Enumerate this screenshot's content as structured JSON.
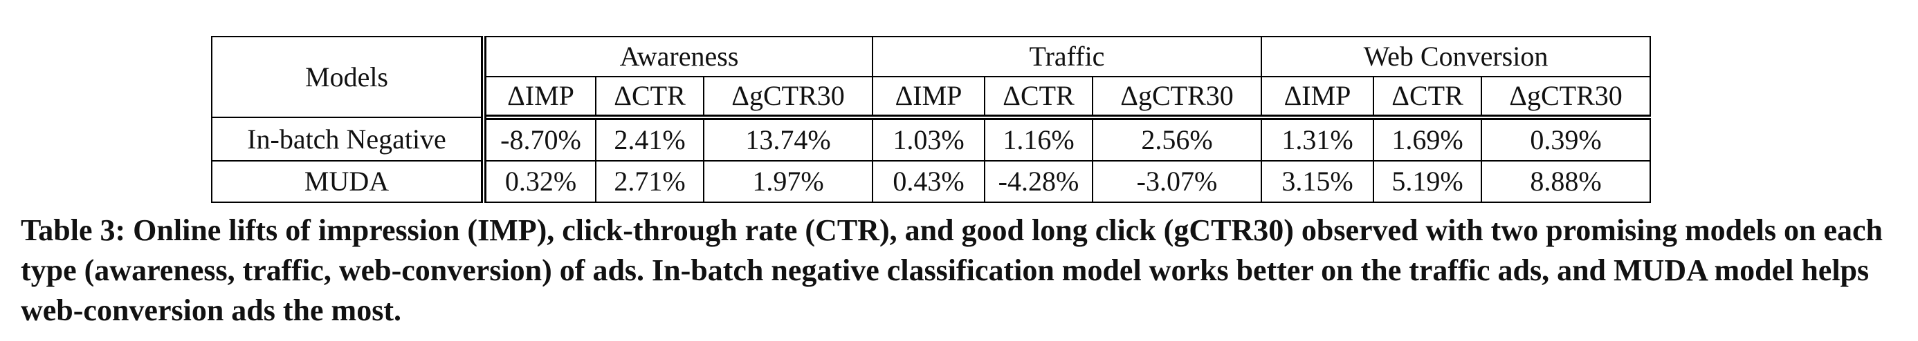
{
  "table": {
    "corner_header": "Models",
    "groups": [
      {
        "label": "Awareness",
        "metrics": [
          "ΔIMP",
          "ΔCTR",
          "ΔgCTR30"
        ]
      },
      {
        "label": "Traffic",
        "metrics": [
          "ΔIMP",
          "ΔCTR",
          "ΔgCTR30"
        ]
      },
      {
        "label": "Web Conversion",
        "metrics": [
          "ΔIMP",
          "ΔCTR",
          "ΔgCTR30"
        ]
      }
    ],
    "rows": [
      {
        "model": "In-batch Negative",
        "values": [
          "-8.70%",
          "2.41%",
          "13.74%",
          "1.03%",
          "1.16%",
          "2.56%",
          "1.31%",
          "1.69%",
          "0.39%"
        ]
      },
      {
        "model": "MUDA",
        "values": [
          "0.32%",
          "2.71%",
          "1.97%",
          "0.43%",
          "-4.28%",
          "-3.07%",
          "3.15%",
          "5.19%",
          "8.88%"
        ]
      }
    ]
  },
  "caption": "Table 3: Online lifts of impression (IMP), click-through rate (CTR), and good long click (gCTR30) observed with two promising models on each type (awareness, traffic, web-conversion) of ads. In-batch negative classification model works better on the traffic ads, and MUDA model helps web-conversion ads the most."
}
